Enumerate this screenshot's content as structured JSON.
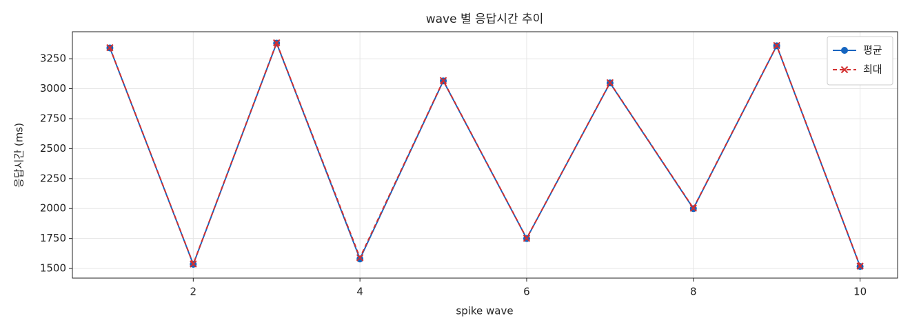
{
  "chart_data": {
    "type": "line",
    "title": "wave 별 응답시간 추이",
    "x_label": "spike wave",
    "y_label": "응답시간 (ms)",
    "x": [
      1,
      2,
      3,
      4,
      5,
      6,
      7,
      8,
      9,
      10
    ],
    "series": [
      {
        "name": "평균",
        "color": "#1565c0",
        "marker": "o",
        "dash": false,
        "values": [
          3340,
          1535,
          3380,
          1580,
          3065,
          1750,
          3048,
          2000,
          3358,
          1517
        ]
      },
      {
        "name": "최대",
        "color": "#d32f2f",
        "marker": "x",
        "dash": true,
        "values": [
          3342,
          1538,
          3383,
          1590,
          3068,
          1752,
          3050,
          2003,
          3360,
          1520
        ]
      }
    ],
    "xlim": [
      0.55,
      10.45
    ],
    "ylim": [
      1420,
      3475
    ],
    "xticks": [
      2,
      4,
      6,
      8,
      10
    ],
    "yticks": [
      1500,
      1750,
      2000,
      2250,
      2500,
      2750,
      3000,
      3250
    ],
    "grid": true,
    "legend": "upper right"
  }
}
